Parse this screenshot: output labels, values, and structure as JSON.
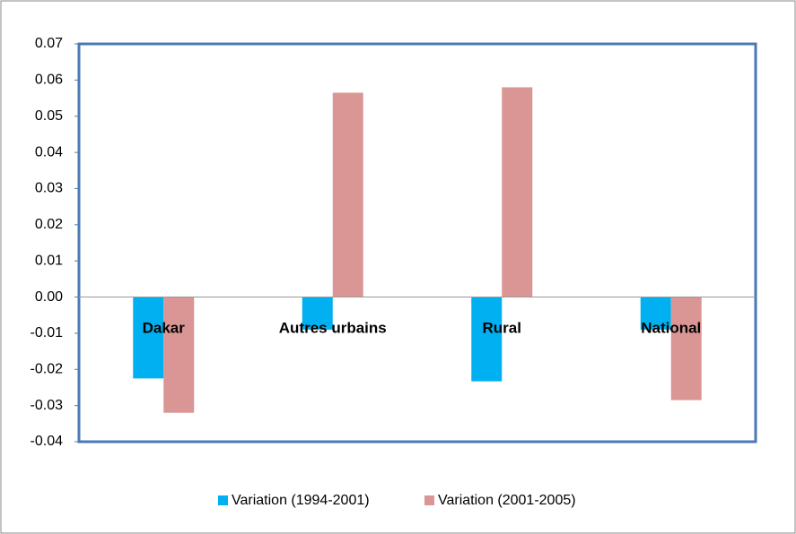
{
  "chart_data": {
    "type": "bar",
    "categories": [
      "Dakar",
      "Autres urbains",
      "Rural",
      "National"
    ],
    "series": [
      {
        "name": "Variation (1994-2001)",
        "color": "#00b0f0",
        "values": [
          -0.0225,
          -0.009,
          -0.0233,
          -0.009
        ]
      },
      {
        "name": "Variation (2001-2005)",
        "color": "#d99694",
        "values": [
          -0.032,
          0.0565,
          0.058,
          -0.0285
        ]
      }
    ],
    "ylim": [
      -0.04,
      0.07
    ],
    "yticks": [
      -0.04,
      -0.03,
      -0.02,
      -0.01,
      {
        "value": 0,
        "label": "0.00"
      },
      0.01,
      0.02,
      0.03,
      0.04,
      0.05,
      0.06,
      0.07
    ],
    "grid": false,
    "legend": "bottom"
  }
}
